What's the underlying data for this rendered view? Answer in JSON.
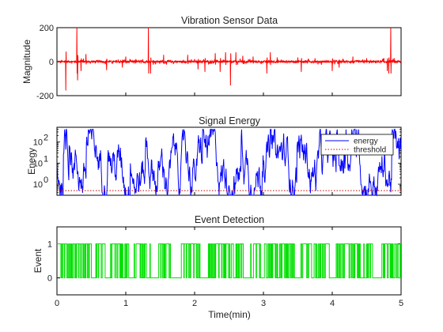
{
  "colors": {
    "vibration": "#ff0000",
    "energy": "#0000ff",
    "threshold": "#cc0000",
    "event": "#00e000",
    "axis": "#000000"
  },
  "chart_data": [
    {
      "type": "line",
      "title": "Vibration Sensor Data",
      "xlabel": "",
      "ylabel": "Magnitude",
      "xlim": [
        0,
        5
      ],
      "ylim": [
        -200,
        200
      ],
      "yticks": [
        "200",
        "0",
        "-200"
      ],
      "series": [
        {
          "color": "#ff0000",
          "baseline": 0,
          "noise_amplitude": 6,
          "spikes": [
            {
              "x": 0.13,
              "y": -170
            },
            {
              "x": 0.29,
              "y": 200
            },
            {
              "x": 0.3,
              "y": -110
            },
            {
              "x": 0.35,
              "y": -55
            },
            {
              "x": 0.42,
              "y": 45
            },
            {
              "x": 0.72,
              "y": -50
            },
            {
              "x": 0.95,
              "y": -35
            },
            {
              "x": 1.0,
              "y": 30
            },
            {
              "x": 1.33,
              "y": 200
            },
            {
              "x": 1.36,
              "y": -70
            },
            {
              "x": 1.55,
              "y": 40
            },
            {
              "x": 1.9,
              "y": 40
            },
            {
              "x": 2.05,
              "y": -45
            },
            {
              "x": 2.15,
              "y": -60
            },
            {
              "x": 2.3,
              "y": 50
            },
            {
              "x": 2.37,
              "y": -60
            },
            {
              "x": 2.45,
              "y": 55
            },
            {
              "x": 2.52,
              "y": -140
            },
            {
              "x": 2.6,
              "y": 55
            },
            {
              "x": 2.7,
              "y": 35
            },
            {
              "x": 2.85,
              "y": 30
            },
            {
              "x": 3.05,
              "y": -70
            },
            {
              "x": 3.1,
              "y": 55
            },
            {
              "x": 3.2,
              "y": 25
            },
            {
              "x": 3.5,
              "y": 25
            },
            {
              "x": 3.55,
              "y": -60
            },
            {
              "x": 3.75,
              "y": 20
            },
            {
              "x": 4.0,
              "y": -55
            },
            {
              "x": 4.1,
              "y": -35
            },
            {
              "x": 4.3,
              "y": 30
            },
            {
              "x": 4.5,
              "y": 20
            },
            {
              "x": 4.75,
              "y": 20
            },
            {
              "x": 4.8,
              "y": -55
            },
            {
              "x": 4.82,
              "y": -70
            },
            {
              "x": 4.85,
              "y": 200
            },
            {
              "x": 4.9,
              "y": 20
            }
          ]
        }
      ]
    },
    {
      "type": "line",
      "title": "Signal Energy",
      "xlabel": "",
      "ylabel": "Enegy",
      "xlim": [
        0,
        5
      ],
      "ylim": [
        0.3,
        500
      ],
      "yscale": "log",
      "yticks": [
        {
          "exp": "0"
        },
        {
          "exp": "1"
        },
        {
          "exp": "2"
        }
      ],
      "legend": {
        "position": "top-right",
        "entries": [
          "energy",
          "threshold"
        ]
      },
      "series": [
        {
          "name": "energy",
          "color": "#0000ff",
          "log10_range": [
            -0.5,
            2.7
          ],
          "description_level": "fluctuating"
        },
        {
          "name": "threshold",
          "color": "#cc0000",
          "style": "dotted",
          "value": 0.5
        }
      ]
    },
    {
      "type": "line",
      "title": "Event Detection",
      "xlabel": "Time(min)",
      "ylabel": "Event",
      "xlim": [
        0,
        5
      ],
      "ylim": [
        -0.5,
        1.5
      ],
      "xticks": [
        "0",
        "1",
        "2",
        "3",
        "4",
        "5"
      ],
      "yticks": [
        "1",
        "0"
      ],
      "series": [
        {
          "color": "#00e000",
          "binary_values": [
            0,
            1
          ],
          "active_segments": [
            [
              0.0,
              0.5
            ],
            [
              0.55,
              0.7
            ],
            [
              0.8,
              0.95
            ],
            [
              1.0,
              1.05
            ],
            [
              1.15,
              1.3
            ],
            [
              1.45,
              1.65
            ],
            [
              1.8,
              2.05
            ],
            [
              2.2,
              2.55
            ],
            [
              2.6,
              2.7
            ],
            [
              2.85,
              2.95
            ],
            [
              3.0,
              3.45
            ],
            [
              3.55,
              3.75
            ],
            [
              3.8,
              3.95
            ],
            [
              4.05,
              4.4
            ],
            [
              4.5,
              4.6
            ],
            [
              4.7,
              5.0
            ]
          ]
        }
      ]
    }
  ]
}
